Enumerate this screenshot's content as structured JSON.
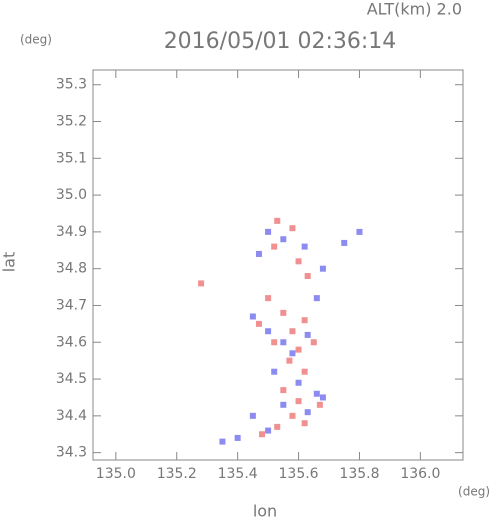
{
  "chart_data": {
    "type": "scatter",
    "corner_label": "ALT(km) 2.0",
    "y_unit": "(deg)",
    "title": "2016/05/01 02:36:14",
    "ylabel": "lat",
    "xlabel": "lon",
    "x_unit": "(deg)",
    "xlim": [
      134.925,
      136.14
    ],
    "ylim": [
      34.28,
      35.34
    ],
    "xticks": [
      {
        "value": 135,
        "label": "135.0"
      },
      135.2,
      135.4,
      135.6,
      135.8,
      {
        "value": 136,
        "label": "136.0"
      }
    ],
    "yticks": [
      34.3,
      34.4,
      34.5,
      34.6,
      34.7,
      34.8,
      34.9,
      {
        "value": 35,
        "label": "35.0"
      },
      35.1,
      35.2,
      35.3
    ],
    "series": [
      {
        "color": "#f09090",
        "x": [
          135.53,
          135.58,
          135.52,
          135.6,
          135.63,
          135.5,
          135.55,
          135.62,
          135.58,
          135.52,
          135.6,
          135.57,
          135.62,
          135.55,
          135.6,
          135.58,
          135.53,
          135.62,
          135.67,
          135.47,
          135.28,
          135.65,
          135.48
        ],
        "y": [
          34.93,
          34.91,
          34.86,
          34.82,
          34.78,
          34.72,
          34.68,
          34.66,
          34.63,
          34.6,
          34.58,
          34.55,
          34.52,
          34.47,
          34.44,
          34.4,
          34.37,
          34.38,
          34.43,
          34.65,
          34.76,
          34.6,
          34.35
        ]
      },
      {
        "color": "#8c8cf0",
        "x": [
          135.5,
          135.55,
          135.47,
          135.62,
          135.68,
          135.75,
          135.8,
          135.66,
          135.45,
          135.5,
          135.55,
          135.63,
          135.58,
          135.52,
          135.6,
          135.66,
          135.55,
          135.63,
          135.45,
          135.4,
          135.5,
          135.68,
          135.35
        ],
        "y": [
          34.9,
          34.88,
          34.84,
          34.86,
          34.8,
          34.87,
          34.9,
          34.72,
          34.67,
          34.63,
          34.6,
          34.62,
          34.57,
          34.52,
          34.49,
          34.46,
          34.43,
          34.41,
          34.4,
          34.34,
          34.36,
          34.45,
          34.33
        ]
      }
    ]
  }
}
